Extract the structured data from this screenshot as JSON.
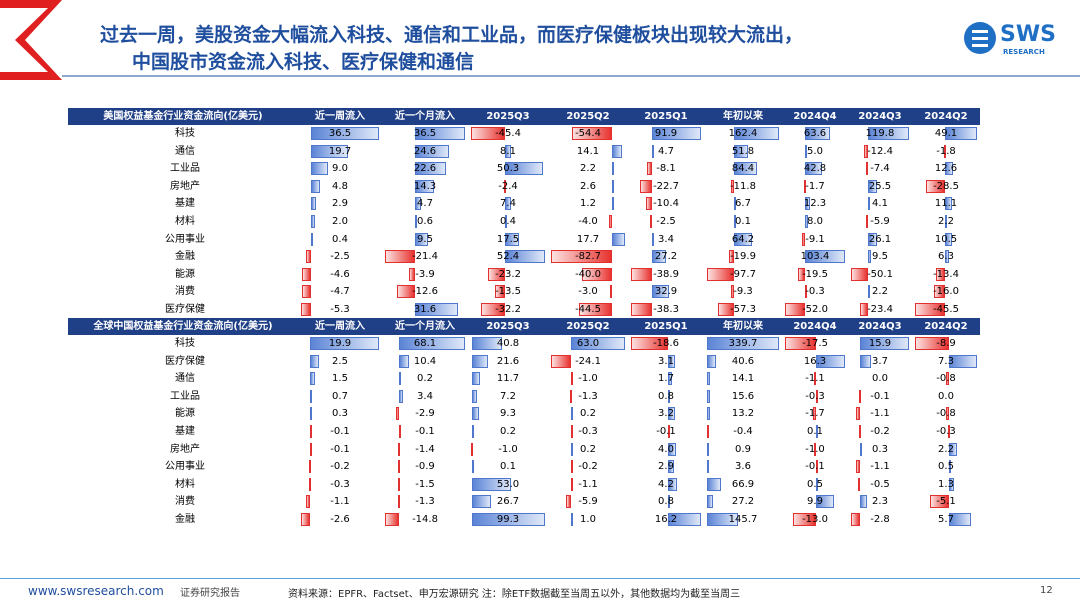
{
  "title": [
    "过去一周，美股资金大幅流入科技、通信和工业品，而医疗保健板块出现较大流出，",
    "中国股市资金流入科技、医疗保健和通信"
  ],
  "logo": {
    "name": "SWS",
    "sub": "RESEARCH"
  },
  "tables": [
    {
      "header": [
        "美国权益基金行业资金流向(亿美元)",
        "近一周流入",
        "近一个月流入",
        "2025Q3",
        "2025Q2",
        "2025Q1",
        "年初以来",
        "2024Q4",
        "2024Q3",
        "2024Q2"
      ],
      "rows": [
        [
          "科技",
          "36.5",
          "36.5",
          "-45.4",
          "-54.4",
          "91.9",
          "162.4",
          "63.6",
          "119.8",
          "49.1"
        ],
        [
          "通信",
          "19.7",
          "24.6",
          "8.1",
          "14.1",
          "4.7",
          "51.8",
          "5.0",
          "-12.4",
          "-1.8"
        ],
        [
          "工业品",
          "9.0",
          "22.6",
          "50.3",
          "2.2",
          "-8.1",
          "84.4",
          "42.8",
          "-7.4",
          "12.6"
        ],
        [
          "房地产",
          "4.8",
          "14.3",
          "-2.4",
          "2.6",
          "-22.7",
          "-11.8",
          "-1.7",
          "25.5",
          "-28.5"
        ],
        [
          "基建",
          "2.9",
          "4.7",
          "7.4",
          "1.2",
          "-10.4",
          "6.7",
          "12.3",
          "4.1",
          "11.1"
        ],
        [
          "材料",
          "2.0",
          "0.6",
          "0.4",
          "-4.0",
          "-2.5",
          "0.1",
          "8.0",
          "-5.9",
          "2.2"
        ],
        [
          "公用事业",
          "0.4",
          "9.5",
          "17.5",
          "17.7",
          "3.4",
          "64.2",
          "-9.1",
          "26.1",
          "10.5"
        ],
        [
          "金融",
          "-2.5",
          "-21.4",
          "52.4",
          "-82.7",
          "27.2",
          "-19.9",
          "103.4",
          "9.5",
          "6.3"
        ],
        [
          "能源",
          "-4.6",
          "-3.9",
          "-23.2",
          "-40.0",
          "-38.9",
          "-97.7",
          "-19.5",
          "-50.1",
          "-13.4"
        ],
        [
          "消费",
          "-4.7",
          "-12.6",
          "-13.5",
          "-3.0",
          "32.9",
          "-9.3",
          "-0.3",
          "2.2",
          "-16.0"
        ],
        [
          "医疗保健",
          "-5.3",
          "31.6",
          "-32.2",
          "-44.5",
          "-38.3",
          "-57.3",
          "-52.0",
          "-23.4",
          "-45.5"
        ]
      ]
    },
    {
      "header": [
        "全球中国权益基金行业资金流向(亿美元)",
        "近一周流入",
        "近一个月流入",
        "2025Q3",
        "2025Q2",
        "2025Q1",
        "年初以来",
        "2024Q4",
        "2024Q3",
        "2024Q2"
      ],
      "rows": [
        [
          "科技",
          "19.9",
          "68.1",
          "40.8",
          "63.0",
          "-18.6",
          "339.7",
          "-17.5",
          "15.9",
          "-8.9"
        ],
        [
          "医疗保健",
          "2.5",
          "10.4",
          "21.6",
          "-24.1",
          "3.1",
          "40.6",
          "16.3",
          "3.7",
          "7.3"
        ],
        [
          "通信",
          "1.5",
          "0.2",
          "11.7",
          "-1.0",
          "1.7",
          "14.1",
          "-1.1",
          "0.0",
          "-0.8"
        ],
        [
          "工业品",
          "0.7",
          "3.4",
          "7.2",
          "-1.3",
          "0.8",
          "15.6",
          "-0.3",
          "-0.1",
          "0.0"
        ],
        [
          "能源",
          "0.3",
          "-2.9",
          "9.3",
          "0.2",
          "3.2",
          "13.2",
          "-1.7",
          "-1.1",
          "-0.8"
        ],
        [
          "基建",
          "-0.1",
          "-0.1",
          "0.2",
          "-0.3",
          "-0.1",
          "-0.4",
          "0.1",
          "-0.2",
          "-0.3"
        ],
        [
          "房地产",
          "-0.1",
          "-1.4",
          "-1.0",
          "0.2",
          "4.0",
          "0.9",
          "-1.0",
          "0.3",
          "2.2"
        ],
        [
          "公用事业",
          "-0.2",
          "-0.9",
          "0.1",
          "-0.2",
          "2.9",
          "3.6",
          "-0.1",
          "-1.1",
          "0.5"
        ],
        [
          "材料",
          "-0.3",
          "-1.5",
          "53.0",
          "-1.1",
          "4.2",
          "66.9",
          "0.5",
          "-0.5",
          "1.3"
        ],
        [
          "消费",
          "-1.1",
          "-1.3",
          "26.7",
          "-5.9",
          "0.8",
          "27.2",
          "9.9",
          "2.3",
          "-5.1"
        ],
        [
          "金融",
          "-2.6",
          "-14.8",
          "99.3",
          "1.0",
          "16.2",
          "145.7",
          "-13.0",
          "-2.8",
          "5.7"
        ]
      ]
    }
  ],
  "footer": {
    "url": "www.swsresearch.com",
    "label": "证券研究报告",
    "source": "资料来源：EPFR、Factset、申万宏源研究 注：除ETF数据截至当周五以外，其他数据均为截至当周三",
    "page": "12"
  }
}
